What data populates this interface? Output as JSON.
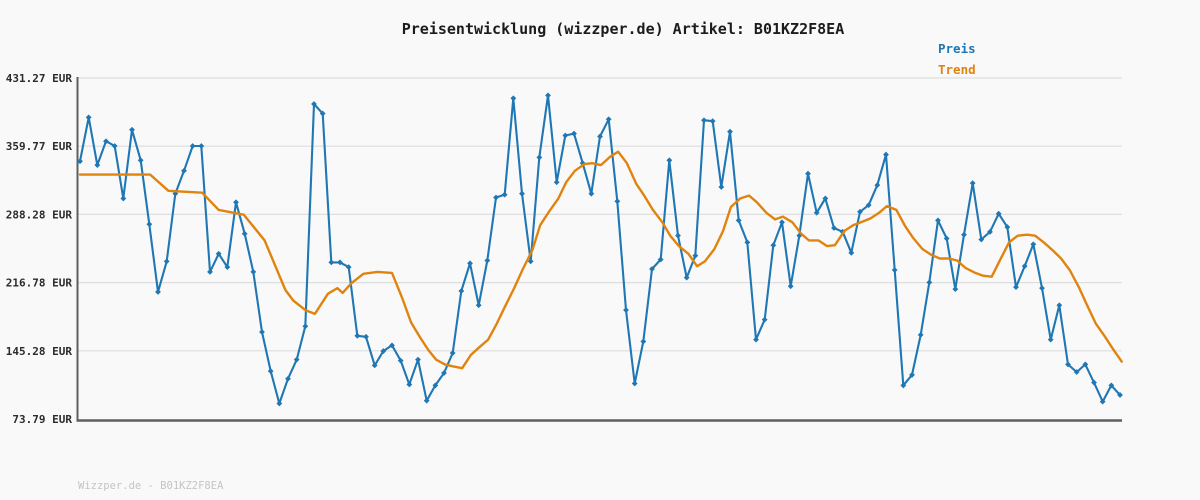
{
  "header": {
    "title": "Preisentwicklung (wizzper.de) Artikel: B01KZ2F8EA"
  },
  "legend": {
    "items": [
      {
        "label": "Preis",
        "color": "#1f77b4"
      },
      {
        "label": "Trend",
        "color": "#e0830f"
      }
    ]
  },
  "footer": {
    "text": "Wizzper.de - B01KZ2F8EA"
  },
  "colors": {
    "price_line": "#1f77b4",
    "trend_line": "#e0830f",
    "grid_line": "#dedede",
    "axis_line": "#5f5f5f",
    "background": "#f9f9f9"
  },
  "chart_data": {
    "type": "line",
    "title": "Preisentwicklung (wizzper.de) Artikel: B01KZ2F8EA",
    "xlabel": "",
    "ylabel": "",
    "unit": "EUR",
    "grid": "horizontal",
    "legend_position": "top-right",
    "x_axis_labels_visible": false,
    "y_axis": {
      "min": 73.79,
      "max": 431.27,
      "ticks": [
        {
          "value": 431.27,
          "label": "431.27 EUR"
        },
        {
          "value": 359.77,
          "label": "359.77 EUR"
        },
        {
          "value": 288.28,
          "label": "288.28 EUR"
        },
        {
          "value": 216.78,
          "label": "216.78 EUR"
        },
        {
          "value": 145.28,
          "label": "145.28 EUR"
        },
        {
          "value": 73.79,
          "label": "73.79 EUR"
        }
      ]
    },
    "series": [
      {
        "name": "Preis",
        "color": "#1f77b4",
        "marker": "diamond",
        "values": [
          344,
          390,
          340,
          365,
          360,
          305,
          377,
          345,
          278,
          207,
          239,
          310,
          334,
          360,
          360,
          228,
          247,
          233,
          301,
          268,
          228,
          165,
          124,
          90,
          116,
          136,
          171,
          404,
          394,
          238,
          238,
          233,
          161,
          160,
          130,
          145,
          151,
          135,
          110,
          136,
          93,
          109,
          122,
          143,
          208,
          237,
          193,
          240,
          306,
          309,
          410,
          310,
          239,
          348,
          413,
          322,
          371,
          373,
          342,
          310,
          370,
          388,
          302,
          188,
          111,
          155,
          231,
          241,
          345,
          266,
          222,
          245,
          387,
          386,
          317,
          375,
          282,
          259,
          157,
          178,
          256,
          280,
          213,
          266,
          331,
          290,
          305,
          274,
          270,
          248,
          291,
          298,
          319,
          351,
          230,
          109,
          120,
          162,
          217,
          282,
          263,
          210,
          267,
          321,
          262,
          270,
          289,
          275,
          212,
          234,
          257,
          211,
          157,
          193,
          131,
          123,
          131,
          112,
          92,
          109,
          99
        ]
      },
      {
        "name": "Trend",
        "color": "#e0830f",
        "marker": "none",
        "points": [
          [
            0,
            330
          ],
          [
            8.1,
            330
          ],
          [
            10.2,
            313
          ],
          [
            14.1,
            311
          ],
          [
            16,
            293
          ],
          [
            18.9,
            288
          ],
          [
            21.3,
            261
          ],
          [
            22.5,
            235
          ],
          [
            23.7,
            209
          ],
          [
            24.6,
            198
          ],
          [
            26,
            188
          ],
          [
            27.1,
            184
          ],
          [
            28.6,
            205
          ],
          [
            29.7,
            211
          ],
          [
            30.3,
            206
          ],
          [
            31.3,
            216
          ],
          [
            32.7,
            226
          ],
          [
            34.3,
            228
          ],
          [
            36,
            227
          ],
          [
            37.2,
            200
          ],
          [
            38.2,
            175
          ],
          [
            39.2,
            160
          ],
          [
            40.2,
            146
          ],
          [
            41.1,
            136
          ],
          [
            42.1,
            131
          ],
          [
            43,
            129
          ],
          [
            44.1,
            127
          ],
          [
            45.1,
            141
          ],
          [
            46.2,
            150
          ],
          [
            47.1,
            157
          ],
          [
            48.1,
            174
          ],
          [
            49,
            191
          ],
          [
            50.1,
            211
          ],
          [
            51.1,
            231
          ],
          [
            52.2,
            251
          ],
          [
            53.1,
            277
          ],
          [
            54.1,
            291
          ],
          [
            55.2,
            305
          ],
          [
            56.1,
            322
          ],
          [
            57.1,
            334
          ],
          [
            58.2,
            341
          ],
          [
            59.1,
            342
          ],
          [
            60.1,
            340
          ],
          [
            61.2,
            349
          ],
          [
            62.1,
            354
          ],
          [
            63.1,
            342
          ],
          [
            64.2,
            320
          ],
          [
            65.1,
            308
          ],
          [
            66.1,
            293
          ],
          [
            67.2,
            280
          ],
          [
            68.1,
            266
          ],
          [
            69.1,
            255
          ],
          [
            70.2,
            247
          ],
          [
            71.2,
            234
          ],
          [
            72.1,
            239
          ],
          [
            73.2,
            252
          ],
          [
            74.2,
            271
          ],
          [
            75.1,
            296
          ],
          [
            76.2,
            305
          ],
          [
            77.2,
            308
          ],
          [
            78.1,
            301
          ],
          [
            79.2,
            290
          ],
          [
            80.2,
            283
          ],
          [
            81.1,
            286
          ],
          [
            82.2,
            280
          ],
          [
            83.2,
            268
          ],
          [
            84.1,
            261
          ],
          [
            85.2,
            261
          ],
          [
            86.2,
            255
          ],
          [
            87.1,
            256
          ],
          [
            88.2,
            271
          ],
          [
            89.2,
            277
          ],
          [
            90.1,
            280
          ],
          [
            91.2,
            284
          ],
          [
            92.2,
            290
          ],
          [
            93.1,
            297
          ],
          [
            94.2,
            293
          ],
          [
            95.2,
            276
          ],
          [
            96.1,
            264
          ],
          [
            97.2,
            252
          ],
          [
            98.2,
            246
          ],
          [
            99.2,
            242
          ],
          [
            100.3,
            242
          ],
          [
            101.2,
            240
          ],
          [
            102.2,
            232
          ],
          [
            103.3,
            227
          ],
          [
            104.2,
            224
          ],
          [
            105.2,
            223
          ],
          [
            106.3,
            243
          ],
          [
            107.2,
            259
          ],
          [
            108.2,
            266
          ],
          [
            109.3,
            267
          ],
          [
            110.2,
            266
          ],
          [
            111.2,
            259
          ],
          [
            112.3,
            250
          ],
          [
            113.2,
            242
          ],
          [
            114.2,
            230
          ],
          [
            115.3,
            211
          ],
          [
            116.2,
            193
          ],
          [
            117.2,
            174
          ],
          [
            118.2,
            161
          ],
          [
            119.2,
            147
          ],
          [
            120.2,
            134
          ]
        ]
      }
    ]
  }
}
